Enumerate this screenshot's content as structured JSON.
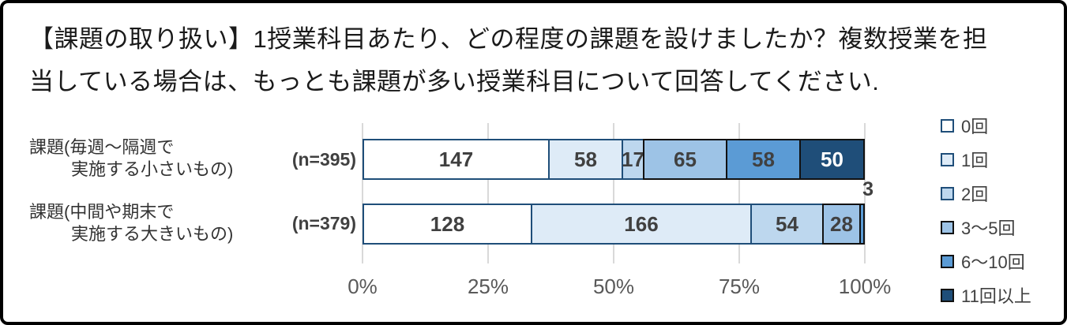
{
  "title": {
    "lines": [
      "【課題の取り扱い】1授業科目あたり、どの程度の課題を設けましたか？複数授業を担",
      "当している場合は、もっとも課題が多い授業科目について回答してください."
    ]
  },
  "chart_data": {
    "type": "bar",
    "variant": "horizontal-stacked-100percent",
    "categories": [
      {
        "label_lines": [
          "課題(毎週〜隔週で",
          "実施する小さいもの)"
        ],
        "n_label": "(n=395)",
        "n": 395
      },
      {
        "label_lines": [
          "課題(中間や期末で",
          "実施する大きいもの)"
        ],
        "n_label": "(n=379)",
        "n": 379
      }
    ],
    "series": [
      {
        "name": "0回",
        "color": "#ffffff",
        "border_color": "#1f4e79",
        "label_color": "#404040",
        "values": [
          147,
          128
        ]
      },
      {
        "name": "1回",
        "color": "#deebf7",
        "border_color": "#1f4e79",
        "label_color": "#404040",
        "values": [
          58,
          166
        ]
      },
      {
        "name": "2回",
        "color": "#bdd7ee",
        "border_color": "#1f4e79",
        "label_color": "#404040",
        "values": [
          17,
          54
        ]
      },
      {
        "name": "3〜5回",
        "color": "#9dc3e6",
        "border_color": "#111111",
        "label_color": "#404040",
        "values": [
          65,
          28
        ]
      },
      {
        "name": "6〜10回",
        "color": "#5b9bd5",
        "border_color": "#111111",
        "label_color": "#404040",
        "values": [
          58,
          3
        ]
      },
      {
        "name": "11回以上",
        "color": "#1f4e79",
        "border_color": "#111111",
        "label_color": "#ffffff",
        "values": [
          50,
          0
        ]
      }
    ],
    "x_axis": {
      "min": 0,
      "max": 100,
      "tick_labels": [
        "0%",
        "25%",
        "50%",
        "75%",
        "100%"
      ],
      "grid": true
    },
    "outside_labels": [
      {
        "text": "3",
        "category_index": 1,
        "series_index": 4
      }
    ],
    "legend_position": "right"
  },
  "colors": {
    "gridline": "#d9d9d9",
    "axis_label": "#595959",
    "category_label": "#333333",
    "value_label": "#404040",
    "title": "#1a1a1a",
    "frame_border": "#000000",
    "background": "#ffffff"
  }
}
